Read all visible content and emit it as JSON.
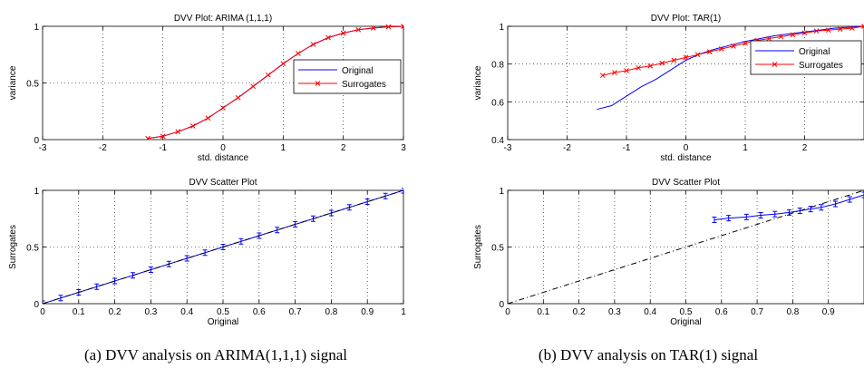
{
  "captions": {
    "left": "(a) DVV analysis on ARIMA(1,1,1) signal",
    "right": "(b) DVV analysis on TAR(1) signal"
  },
  "chart_data": [
    {
      "id": "arima_dvv",
      "type": "line",
      "title": "DVV Plot: ARIMA (1,1,1)",
      "xlabel": "std. distance",
      "ylabel": "variance",
      "xlim": [
        -3,
        3
      ],
      "ylim": [
        0,
        1
      ],
      "xticks": [
        -3,
        -2,
        -1,
        0,
        1,
        2,
        3
      ],
      "yticks": [
        0,
        0.5,
        1
      ],
      "xtick_labels": [
        "-3",
        "-2",
        "-1",
        "0",
        "1",
        "2",
        "3"
      ],
      "ytick_labels": [
        "0",
        "0.5",
        "1"
      ],
      "grid": true,
      "legend": "right",
      "series": [
        {
          "name": "Original",
          "color": "#0000ff",
          "marker": "none",
          "x": [
            -1.25,
            -1.0,
            -0.75,
            -0.5,
            -0.25,
            0.0,
            0.25,
            0.5,
            0.75,
            1.0,
            1.25,
            1.5,
            1.75,
            2.0,
            2.25,
            2.5,
            2.75,
            3.0
          ],
          "y": [
            0.01,
            0.03,
            0.07,
            0.12,
            0.19,
            0.28,
            0.37,
            0.47,
            0.57,
            0.67,
            0.76,
            0.84,
            0.9,
            0.94,
            0.97,
            0.985,
            0.995,
            1.0
          ]
        },
        {
          "name": "Surrogates",
          "color": "#ff0000",
          "marker": "x",
          "x": [
            -1.25,
            -1.0,
            -0.75,
            -0.5,
            -0.25,
            0.0,
            0.25,
            0.5,
            0.75,
            1.0,
            1.25,
            1.5,
            1.75,
            2.0,
            2.25,
            2.5,
            2.75,
            3.0
          ],
          "y": [
            0.01,
            0.03,
            0.07,
            0.12,
            0.19,
            0.28,
            0.37,
            0.47,
            0.57,
            0.67,
            0.76,
            0.84,
            0.9,
            0.94,
            0.97,
            0.985,
            0.995,
            1.0
          ]
        }
      ]
    },
    {
      "id": "tar_dvv",
      "type": "line",
      "title": "DVV Plot: TAR(1)",
      "xlabel": "std. distance",
      "ylabel": "variance",
      "xlim": [
        -3,
        3
      ],
      "ylim": [
        0.4,
        1
      ],
      "xticks": [
        -3,
        -2,
        -1,
        0,
        1,
        2
      ],
      "yticks": [
        0.4,
        0.6,
        0.8,
        1
      ],
      "xtick_labels": [
        "-3",
        "-2",
        "-1",
        "0",
        "1",
        "2"
      ],
      "ytick_labels": [
        "0.4",
        "0.6",
        "0.8",
        "1"
      ],
      "grid": true,
      "legend": "right",
      "series": [
        {
          "name": "Original",
          "color": "#0000ff",
          "marker": "none",
          "x": [
            -1.5,
            -1.25,
            -1.0,
            -0.75,
            -0.5,
            -0.25,
            0.0,
            0.25,
            0.5,
            0.75,
            1.0,
            1.5,
            2.0,
            2.5,
            3.0
          ],
          "y": [
            0.56,
            0.58,
            0.63,
            0.68,
            0.72,
            0.77,
            0.82,
            0.855,
            0.88,
            0.9,
            0.92,
            0.95,
            0.97,
            0.99,
            1.0
          ]
        },
        {
          "name": "Surrogates",
          "color": "#ff0000",
          "marker": "x",
          "x": [
            -1.4,
            -1.2,
            -1.0,
            -0.8,
            -0.6,
            -0.4,
            -0.2,
            0.0,
            0.2,
            0.4,
            0.6,
            0.8,
            1.0,
            1.2,
            1.4,
            1.6,
            1.8,
            2.0,
            2.2,
            2.4,
            2.6,
            2.8,
            3.0
          ],
          "y": [
            0.74,
            0.755,
            0.765,
            0.78,
            0.79,
            0.805,
            0.82,
            0.835,
            0.85,
            0.865,
            0.88,
            0.895,
            0.91,
            0.925,
            0.935,
            0.945,
            0.955,
            0.965,
            0.975,
            0.98,
            0.985,
            0.99,
            1.0
          ]
        }
      ]
    },
    {
      "id": "arima_scatter",
      "type": "line",
      "title": "DVV Scatter Plot",
      "xlabel": "Original",
      "ylabel": "Surrogates",
      "xlim": [
        0,
        1
      ],
      "ylim": [
        0,
        1
      ],
      "xticks": [
        0,
        0.1,
        0.2,
        0.3,
        0.4,
        0.5,
        0.6,
        0.7,
        0.8,
        0.9,
        1
      ],
      "yticks": [
        0,
        0.5,
        1
      ],
      "xtick_labels": [
        "0",
        "0.1",
        "0.2",
        "0.3",
        "0.4",
        "0.5",
        "0.6",
        "0.7",
        "0.8",
        "0.9",
        "1"
      ],
      "ytick_labels": [
        "0",
        "0.5",
        "1"
      ],
      "grid": true,
      "series": [
        {
          "color": "#0000ff",
          "marker": "errorbar",
          "x": [
            0.0,
            0.05,
            0.1,
            0.15,
            0.2,
            0.25,
            0.3,
            0.35,
            0.4,
            0.45,
            0.5,
            0.55,
            0.6,
            0.65,
            0.7,
            0.75,
            0.8,
            0.85,
            0.9,
            0.95,
            1.0
          ],
          "y": [
            0.0,
            0.05,
            0.1,
            0.15,
            0.2,
            0.25,
            0.3,
            0.35,
            0.4,
            0.45,
            0.5,
            0.55,
            0.6,
            0.65,
            0.7,
            0.75,
            0.8,
            0.85,
            0.9,
            0.95,
            1.0
          ]
        },
        {
          "color": "#000000",
          "marker": "none",
          "dash": "dashdot",
          "x": [
            0,
            1
          ],
          "y": [
            0,
            1
          ]
        }
      ]
    },
    {
      "id": "tar_scatter",
      "type": "line",
      "title": "DVV Scatter Plot",
      "xlabel": "Original",
      "ylabel": "Surrogates",
      "xlim": [
        0,
        1
      ],
      "ylim": [
        0,
        1
      ],
      "xticks": [
        0,
        0.1,
        0.2,
        0.3,
        0.4,
        0.5,
        0.6,
        0.7,
        0.8,
        0.9
      ],
      "yticks": [
        0,
        0.5,
        1
      ],
      "xtick_labels": [
        "0",
        "0.1",
        "0.2",
        "0.3",
        "0.4",
        "0.5",
        "0.6",
        "0.7",
        "0.8",
        "0.9"
      ],
      "ytick_labels": [
        "0",
        "0.5",
        "1"
      ],
      "grid": true,
      "series": [
        {
          "color": "#0000ff",
          "marker": "errorbar",
          "x": [
            0.58,
            0.62,
            0.67,
            0.71,
            0.75,
            0.79,
            0.82,
            0.85,
            0.88,
            0.92,
            0.96,
            1.0
          ],
          "y": [
            0.74,
            0.755,
            0.765,
            0.78,
            0.79,
            0.805,
            0.82,
            0.835,
            0.85,
            0.88,
            0.92,
            0.96
          ]
        },
        {
          "color": "#000000",
          "marker": "none",
          "dash": "dashdot",
          "x": [
            0,
            1
          ],
          "y": [
            0,
            1
          ]
        }
      ]
    }
  ]
}
